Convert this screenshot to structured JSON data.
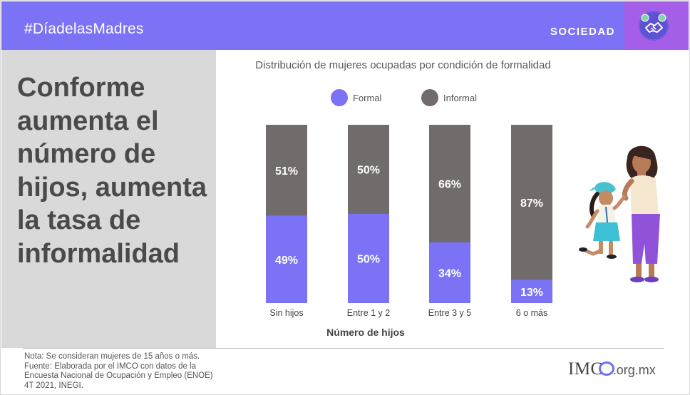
{
  "header": {
    "hashtag": "#DíadelasMadres",
    "section": "SOCIEDAD",
    "badge_icon": "handshake-icon"
  },
  "headline": "Conforme aumenta el número de hijos, aumenta la tasa de informalidad",
  "colors": {
    "formal": "#7b72f5",
    "informal": "#716b6b",
    "header": "#7b72f5",
    "badge": "#a55ee8"
  },
  "chart_data": {
    "type": "bar",
    "stacked": true,
    "title": "Distribución de mujeres ocupadas por condición de formalidad",
    "xlabel": "Número de hijos",
    "ylabel": "",
    "categories": [
      "Sin hijos",
      "Entre 1 y 2",
      "Entre 3 y 5",
      "6 o más"
    ],
    "series": [
      {
        "name": "Formal",
        "values": [
          49,
          50,
          34,
          13
        ],
        "labels": [
          "49%",
          "50%",
          "34%",
          "13%"
        ]
      },
      {
        "name": "Informal",
        "values": [
          51,
          50,
          66,
          87
        ],
        "labels": [
          "51%",
          "50%",
          "66%",
          "87%"
        ]
      }
    ],
    "ylim": [
      0,
      100
    ],
    "legend_position": "top",
    "grid": false
  },
  "illustration": "mother-and-daughter-illustration",
  "footer": {
    "note": "Nota: Se consideran mujeres de 15 años o más. Fuente: Elaborada por el IMCO con datos de la Encuesta Nacional de Ocupación y Empleo (ENOE) 4T 2021, INEGI.",
    "logo_main": "IMC",
    "logo_suffix": ".org.mx"
  }
}
